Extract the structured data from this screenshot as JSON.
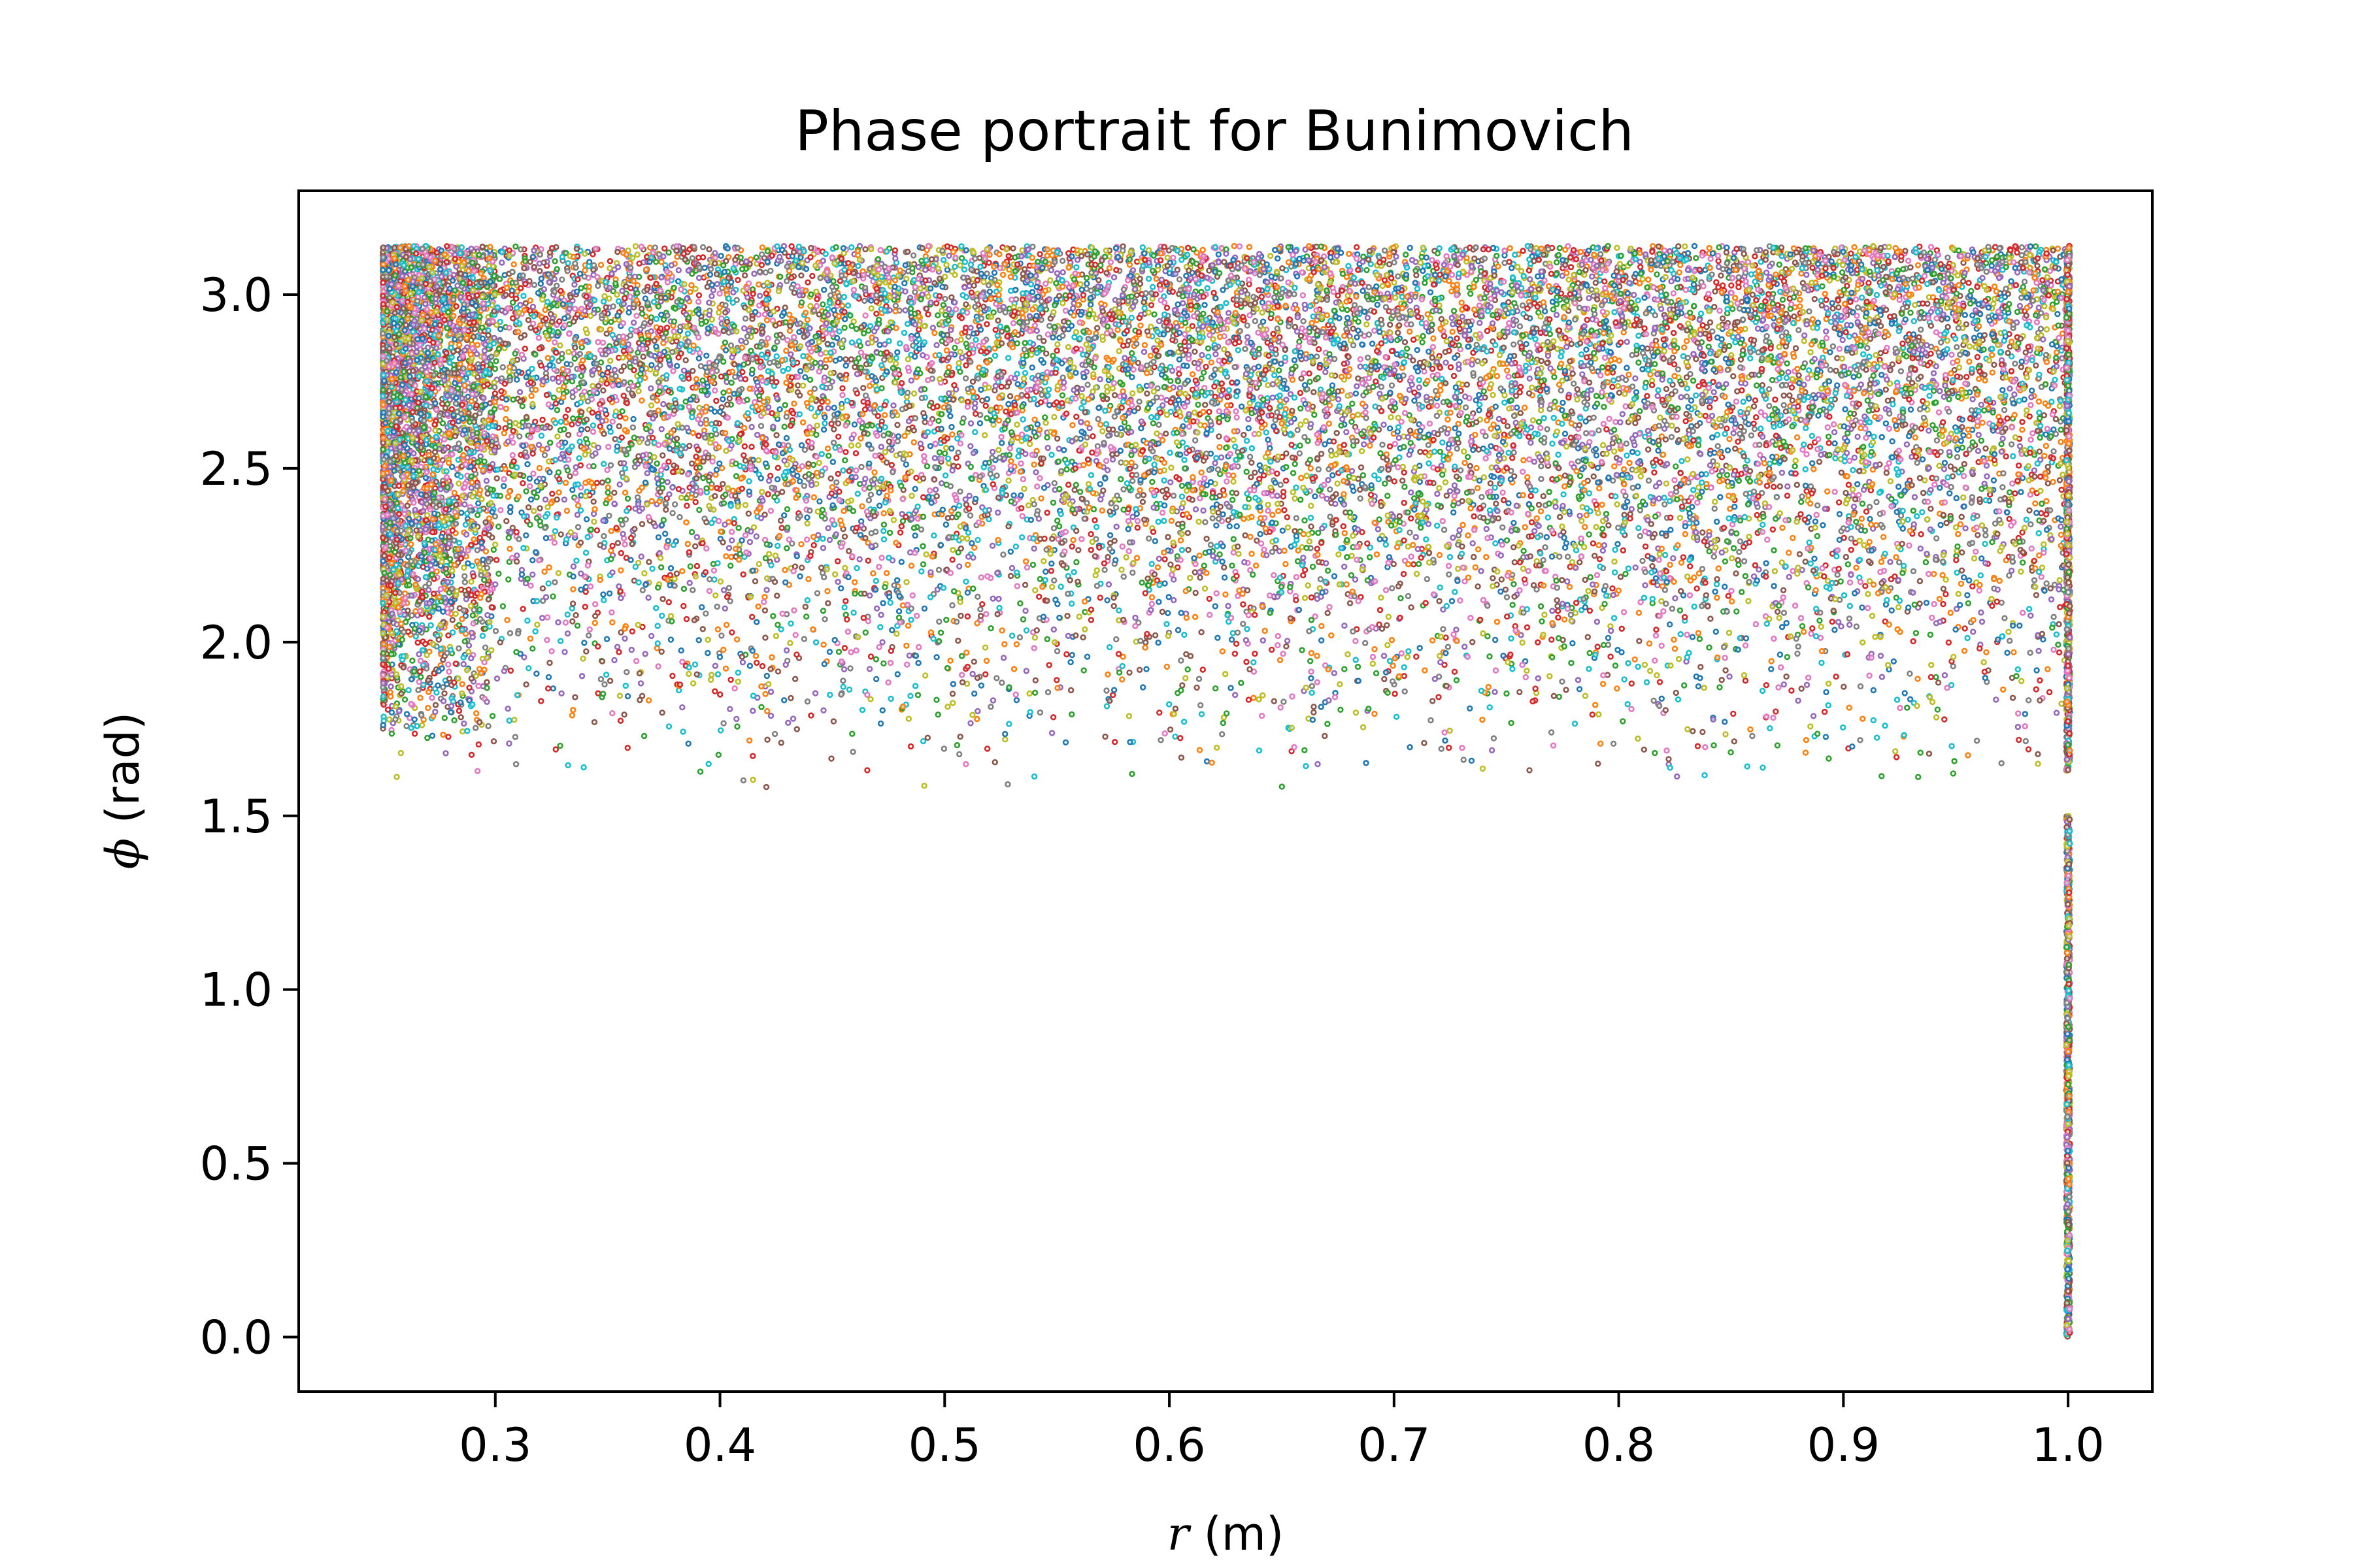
{
  "chart_data": {
    "type": "scatter",
    "title": "Phase portrait for Bunimovich",
    "xlabel": {
      "symbol": "r",
      "unit": " (m)"
    },
    "ylabel": {
      "symbol": "ϕ",
      "unit": " (rad)"
    },
    "xlim": [
      0.2125,
      1.0375
    ],
    "ylim": [
      -0.157,
      3.299
    ],
    "x_ticks": [
      0.3,
      0.4,
      0.5,
      0.6,
      0.7,
      0.8,
      0.9,
      1.0
    ],
    "x_tick_labels": [
      "0.3",
      "0.4",
      "0.5",
      "0.6",
      "0.7",
      "0.8",
      "0.9",
      "1.0"
    ],
    "y_ticks": [
      0.0,
      0.5,
      1.0,
      1.5,
      2.0,
      2.5,
      3.0
    ],
    "y_tick_labels": [
      "0.0",
      "0.5",
      "1.0",
      "1.5",
      "2.0",
      "2.5",
      "3.0"
    ],
    "grid": false,
    "legend": "none",
    "marker": "small hollow circle",
    "palette": [
      "#1f77b4",
      "#ff7f0e",
      "#2ca02c",
      "#d62728",
      "#9467bd",
      "#8c564b",
      "#e377c2",
      "#7f7f7f",
      "#bcbd22",
      "#17becf"
    ],
    "series": [
      {
        "description": "chaotic region",
        "x_range": [
          0.25,
          1.0
        ],
        "y_range": [
          1.58,
          3.14
        ],
        "approx_points": 22000,
        "density": "dense near phi = 3.14, thinning toward phi = 1.6; densest near r = 0.25",
        "sample_points": [
          [
            0.25,
            3.14
          ],
          [
            0.26,
            2.9
          ],
          [
            0.3,
            2.4
          ],
          [
            0.35,
            1.75
          ],
          [
            0.45,
            1.7
          ],
          [
            0.5,
            2.9
          ],
          [
            0.6,
            3.1
          ],
          [
            0.7,
            2.2
          ],
          [
            0.8,
            2.6
          ],
          [
            0.9,
            1.8
          ],
          [
            1.0,
            3.0
          ],
          [
            0.42,
            1.59
          ],
          [
            0.88,
            1.6
          ]
        ]
      },
      {
        "description": "boundary line at r = 1.0",
        "x": 1.0,
        "y_range": [
          0.0,
          3.14
        ],
        "gap": [
          1.5,
          1.63
        ],
        "approx_points": 1600
      }
    ]
  }
}
